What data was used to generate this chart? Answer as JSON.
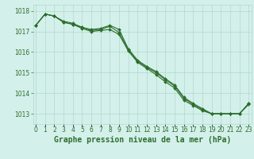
{
  "title": "Graphe pression niveau de la mer (hPa)",
  "bg_color": "#d4f0eb",
  "grid_color": "#b0d8cc",
  "line_color": "#2d6e2d",
  "marker_color": "#2d6e2d",
  "hours": [
    0,
    1,
    2,
    3,
    4,
    5,
    6,
    7,
    8,
    9,
    10,
    11,
    12,
    13,
    14,
    15,
    16,
    17,
    18,
    19,
    20,
    21,
    22,
    23
  ],
  "series1": [
    1017.3,
    1017.85,
    1017.75,
    1017.45,
    1017.35,
    1017.2,
    1017.05,
    1017.1,
    1017.25,
    1016.95,
    1016.1,
    1015.55,
    1015.25,
    1015.0,
    1014.65,
    1014.35,
    1013.75,
    1013.45,
    1013.2,
    1013.0,
    1013.0,
    1013.0,
    1013.0,
    1013.5
  ],
  "series2": [
    1017.3,
    1017.85,
    1017.75,
    1017.45,
    1017.35,
    1017.15,
    1017.0,
    1017.05,
    1017.1,
    1016.85,
    1016.05,
    1015.5,
    1015.2,
    1014.9,
    1014.55,
    1014.25,
    1013.65,
    1013.4,
    1013.15,
    1013.0,
    1013.0,
    1013.0,
    1013.0,
    1013.45
  ],
  "series3": [
    1017.3,
    1017.85,
    1017.75,
    1017.5,
    1017.4,
    1017.2,
    1017.1,
    1017.15,
    1017.3,
    1017.1,
    1016.15,
    1015.6,
    1015.3,
    1015.05,
    1014.7,
    1014.4,
    1013.8,
    1013.5,
    1013.25,
    1013.0,
    1013.0,
    1013.0,
    1013.0,
    1013.5
  ],
  "ylim": [
    1012.5,
    1018.3
  ],
  "yticks": [
    1013,
    1014,
    1015,
    1016,
    1017,
    1018
  ],
  "xlim": [
    -0.3,
    23.3
  ],
  "title_fontsize": 7,
  "tick_fontsize": 5.5,
  "label_color": "#2d6e2d"
}
